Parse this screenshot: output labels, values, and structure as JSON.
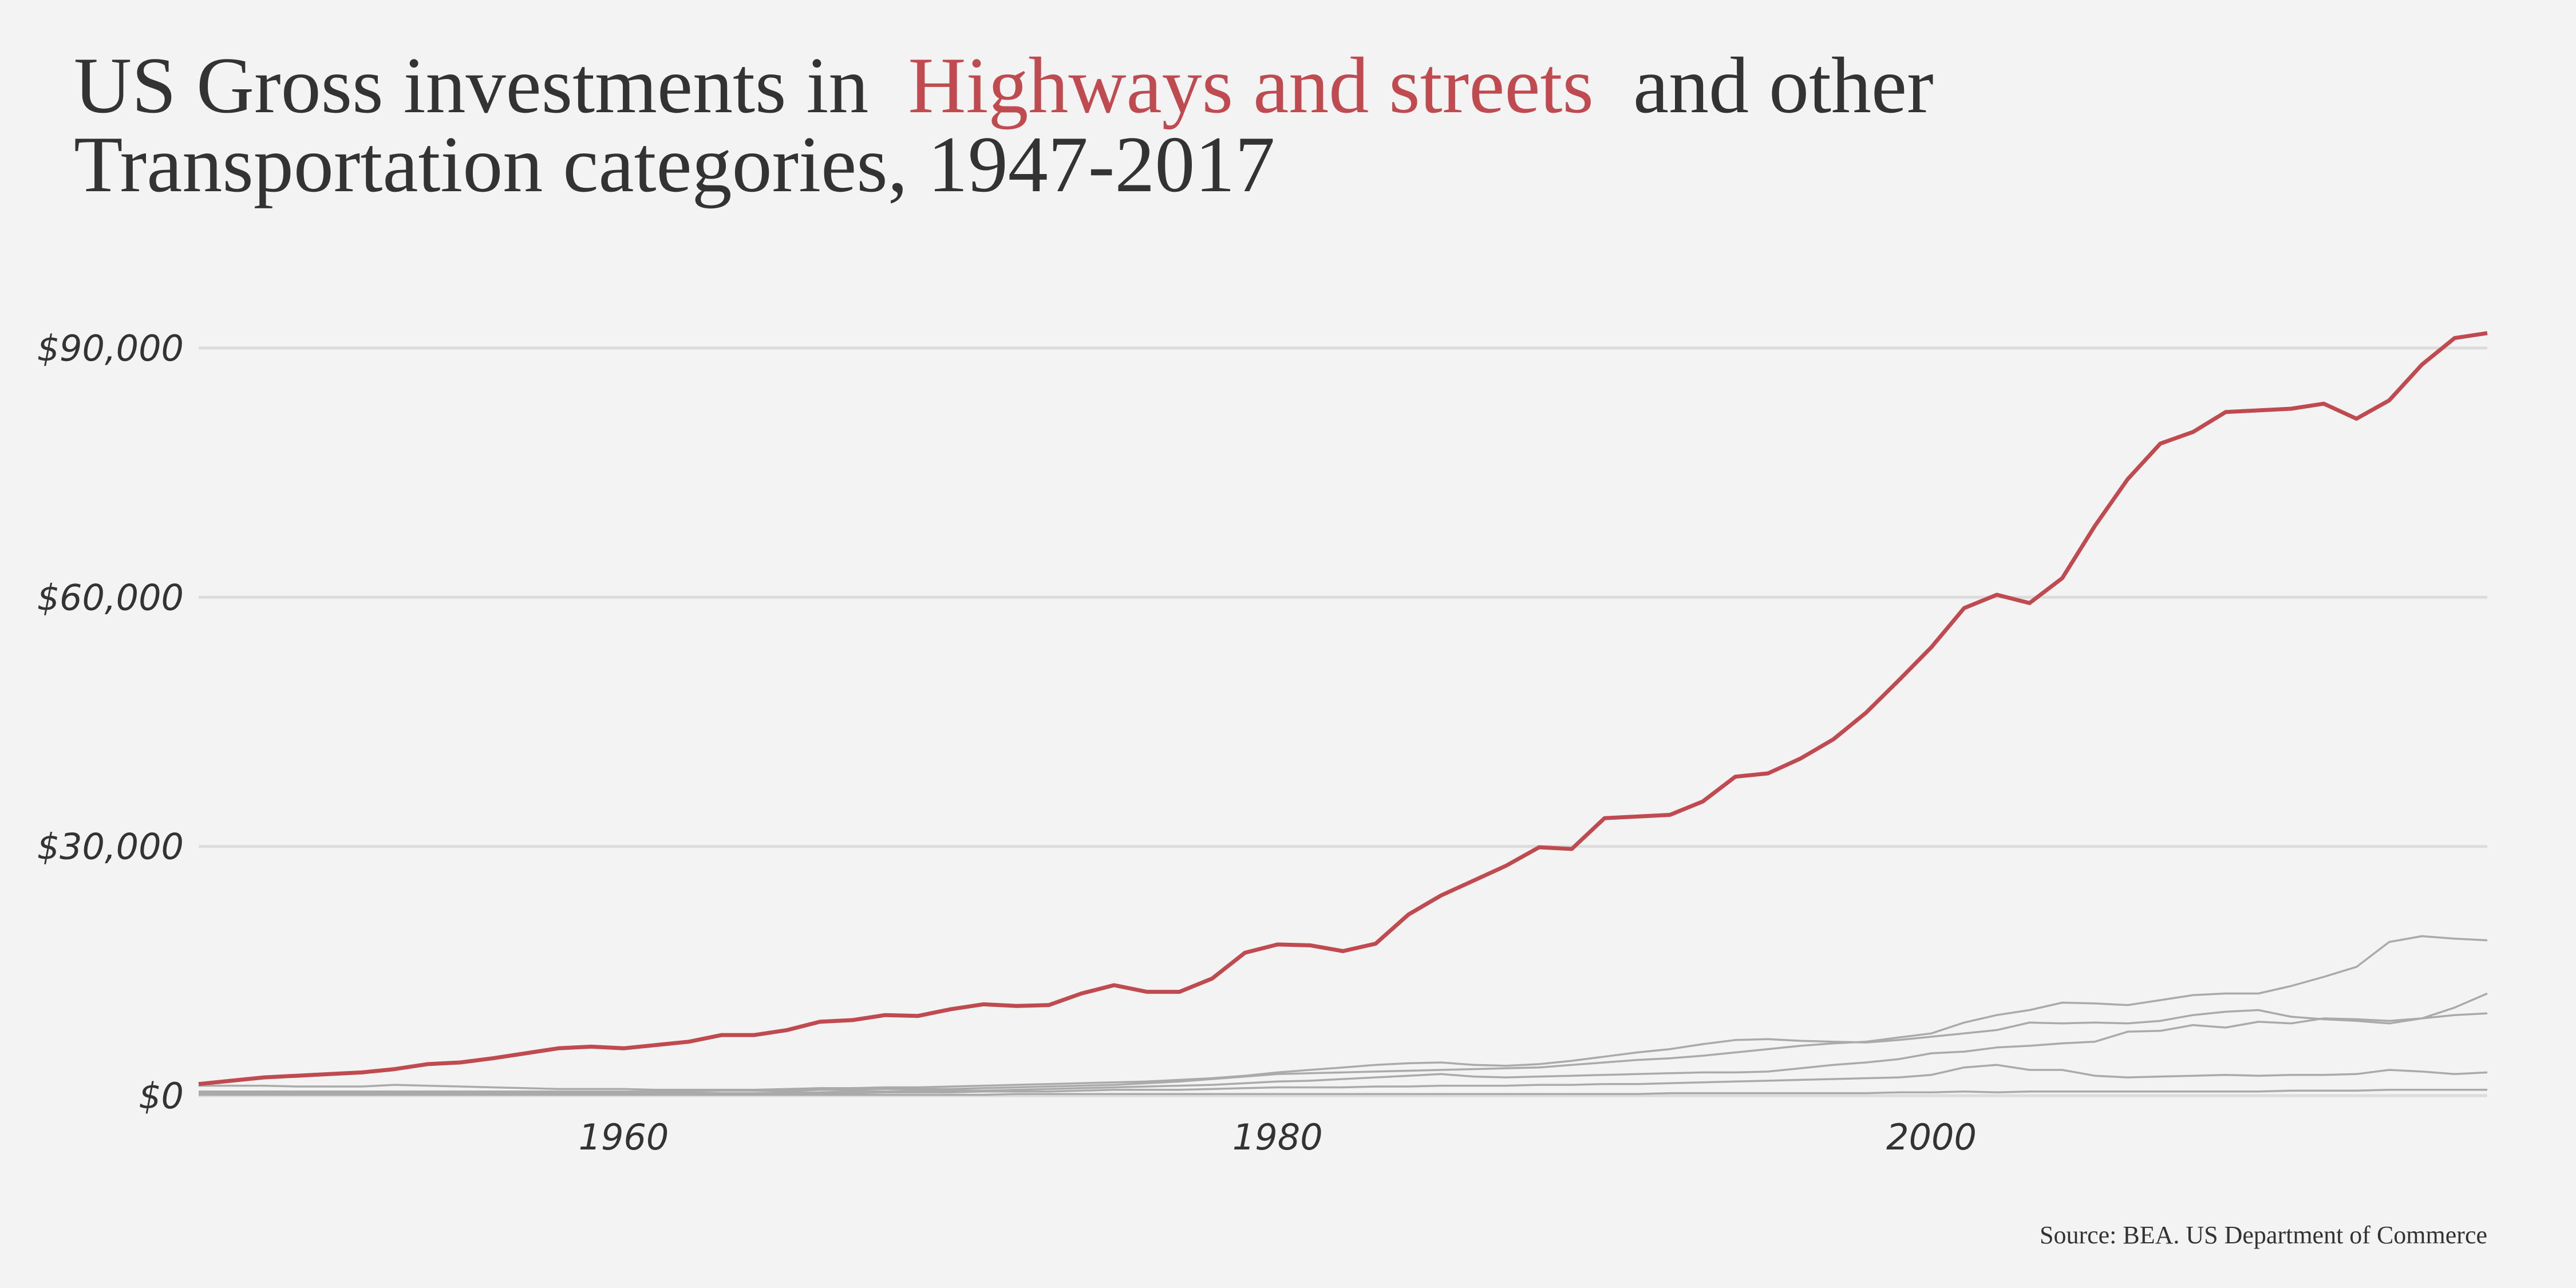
{
  "chart_data": {
    "type": "line",
    "title": {
      "before": "US Gross investments in",
      "after": "and other",
      "line2": "Transportation categories, 1947-2017"
    },
    "source": "Source: BEA. US Department of Commerce",
    "x": [
      1947,
      1948,
      1949,
      1950,
      1951,
      1952,
      1953,
      1954,
      1955,
      1956,
      1957,
      1958,
      1959,
      1960,
      1961,
      1962,
      1963,
      1964,
      1965,
      1966,
      1967,
      1968,
      1969,
      1970,
      1971,
      1972,
      1973,
      1974,
      1975,
      1976,
      1977,
      1978,
      1979,
      1980,
      1981,
      1982,
      1983,
      1984,
      1985,
      1986,
      1987,
      1988,
      1989,
      1990,
      1991,
      1992,
      1993,
      1994,
      1995,
      1996,
      1997,
      1998,
      1999,
      2000,
      2001,
      2002,
      2003,
      2004,
      2005,
      2006,
      2007,
      2008,
      2009,
      2010,
      2011,
      2012,
      2013,
      2014,
      2015,
      2016,
      2017
    ],
    "series": [
      {
        "name": "Highways and streets",
        "color": "#bf4a4f",
        "values": [
          1400,
          1800,
          2200,
          2400,
          2600,
          2800,
          3200,
          3800,
          4000,
          4500,
          5100,
          5700,
          5900,
          5700,
          6100,
          6500,
          7300,
          7300,
          7900,
          8900,
          9100,
          9700,
          9600,
          10400,
          11000,
          10800,
          10900,
          12300,
          13300,
          12500,
          12500,
          14100,
          17200,
          18200,
          18100,
          17400,
          18300,
          21800,
          24100,
          25900,
          27700,
          29900,
          29700,
          33400,
          33600,
          33800,
          35400,
          38400,
          38800,
          40600,
          42900,
          46100,
          50000,
          54000,
          58700,
          60300,
          59300,
          62300,
          68600,
          74200,
          78500,
          79900,
          82300,
          82500,
          82700,
          83300,
          81500,
          83700,
          88000,
          91200,
          91800
        ]
      },
      {
        "color": "#aaaaaa",
        "values": [
          500,
          500,
          500,
          500,
          500,
          500,
          500,
          500,
          500,
          500,
          500,
          500,
          500,
          500,
          500,
          500,
          600,
          600,
          600,
          700,
          700,
          800,
          800,
          800,
          900,
          1000,
          1100,
          1200,
          1300,
          1500,
          1700,
          2000,
          2300,
          2600,
          2700,
          2800,
          2900,
          3000,
          3100,
          3200,
          3300,
          3400,
          3700,
          4000,
          4300,
          4500,
          4800,
          5200,
          5600,
          6000,
          6300,
          6500,
          7000,
          7500,
          8800,
          9700,
          10300,
          11200,
          11100,
          10900,
          11500,
          12100,
          12300,
          12300,
          13200,
          14300,
          15500,
          18500,
          19200,
          18900,
          18700
        ]
      },
      {
        "color": "#aaaaaa",
        "values": [
          1200,
          1200,
          1200,
          1100,
          1100,
          1100,
          1300,
          1200,
          1100,
          1000,
          900,
          800,
          800,
          800,
          700,
          700,
          700,
          700,
          800,
          900,
          900,
          1000,
          1000,
          1100,
          1200,
          1300,
          1400,
          1500,
          1600,
          1700,
          1900,
          2100,
          2400,
          2800,
          3100,
          3400,
          3700,
          3900,
          4000,
          3700,
          3600,
          3800,
          4200,
          4700,
          5200,
          5600,
          6200,
          6700,
          6800,
          6600,
          6500,
          6400,
          6700,
          7100,
          7500,
          7900,
          8800,
          8700,
          8800,
          8700,
          9000,
          9700,
          10100,
          10300,
          9500,
          9200,
          9000,
          8700,
          9300,
          10600,
          12300
        ]
      },
      {
        "color": "#aaaaaa",
        "values": [
          300,
          300,
          300,
          300,
          300,
          300,
          300,
          300,
          300,
          300,
          300,
          300,
          300,
          300,
          300,
          300,
          300,
          300,
          400,
          400,
          500,
          500,
          600,
          600,
          600,
          700,
          800,
          900,
          1000,
          1100,
          1200,
          1300,
          1500,
          1700,
          1800,
          2000,
          2200,
          2400,
          2600,
          2300,
          2200,
          2300,
          2400,
          2500,
          2600,
          2700,
          2800,
          2800,
          2900,
          3300,
          3700,
          4000,
          4400,
          5100,
          5300,
          5800,
          6000,
          6300,
          6500,
          7700,
          7800,
          8500,
          8200,
          8900,
          8700,
          9300,
          9200,
          9000,
          9300,
          9700,
          9900
        ]
      },
      {
        "color": "#aaaaaa",
        "values": [
          200,
          200,
          200,
          200,
          200,
          200,
          200,
          200,
          200,
          200,
          200,
          200,
          200,
          200,
          200,
          200,
          200,
          300,
          300,
          300,
          300,
          400,
          400,
          400,
          500,
          500,
          500,
          600,
          700,
          700,
          700,
          800,
          900,
          1000,
          1000,
          1000,
          1100,
          1100,
          1200,
          1200,
          1200,
          1300,
          1300,
          1400,
          1400,
          1500,
          1600,
          1700,
          1800,
          1900,
          2000,
          2100,
          2200,
          2500,
          3400,
          3700,
          3100,
          3100,
          2400,
          2200,
          2300,
          2400,
          2500,
          2400,
          2500,
          2500,
          2600,
          3100,
          2900,
          2600,
          2800
        ]
      },
      {
        "color": "#aaaaaa",
        "values": [
          100,
          100,
          100,
          100,
          100,
          100,
          100,
          100,
          100,
          100,
          100,
          100,
          100,
          100,
          100,
          100,
          100,
          100,
          100,
          100,
          100,
          100,
          100,
          100,
          100,
          200,
          200,
          200,
          200,
          200,
          200,
          200,
          200,
          200,
          200,
          200,
          200,
          200,
          200,
          200,
          200,
          200,
          200,
          200,
          200,
          300,
          300,
          300,
          300,
          300,
          300,
          300,
          400,
          400,
          500,
          400,
          500,
          500,
          500,
          500,
          500,
          500,
          500,
          500,
          600,
          600,
          600,
          700,
          700,
          700,
          700
        ]
      }
    ],
    "xlim": [
      1947,
      2017
    ],
    "xticks": [
      1960,
      1980,
      2000
    ],
    "ylim": [
      0,
      92000
    ],
    "yticks": [
      {
        "value": 0,
        "label": "$0"
      },
      {
        "value": 30000,
        "label": "$30,000"
      },
      {
        "value": 60000,
        "label": "$60,000"
      },
      {
        "value": 90000,
        "label": "$90,000"
      }
    ],
    "grid": true
  }
}
